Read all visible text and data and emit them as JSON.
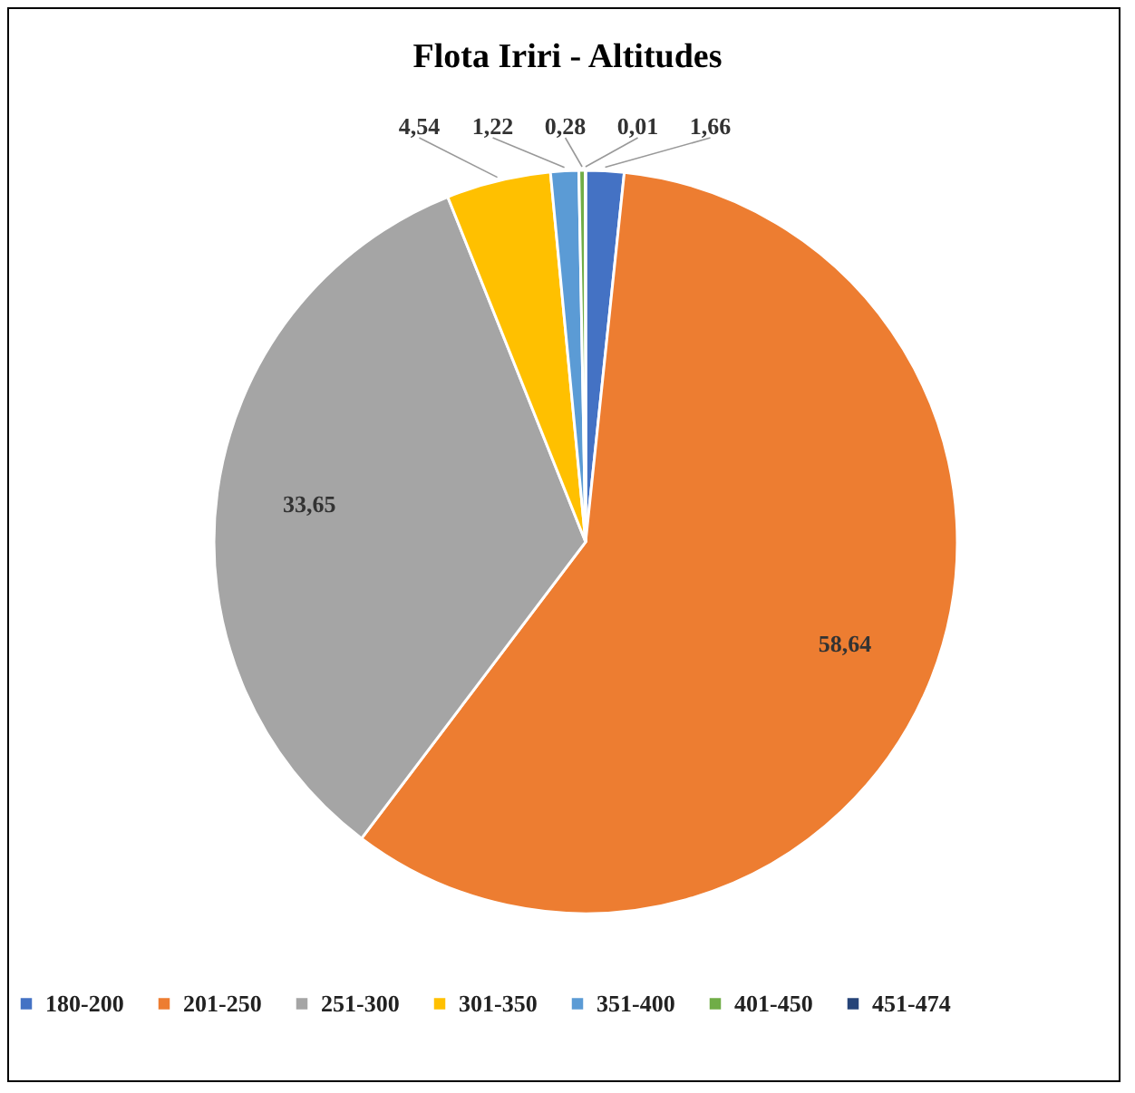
{
  "chart_data": {
    "type": "pie",
    "title": "Flota Iriri - Altitudes",
    "categories": [
      "180-200",
      "201-250",
      "251-300",
      "301-350",
      "351-400",
      "401-450",
      "451-474"
    ],
    "values": [
      1.66,
      58.64,
      33.65,
      4.54,
      1.22,
      0.28,
      0.01
    ],
    "colors": [
      "#4472c4",
      "#ed7d31",
      "#a5a5a5",
      "#ffc000",
      "#5b9bd5",
      "#70ad47",
      "#264478"
    ],
    "value_labels": [
      "1,66",
      "58,64",
      "33,65",
      "4,54",
      "1,22",
      "0,28",
      "0,01"
    ],
    "legend": "bottom"
  }
}
